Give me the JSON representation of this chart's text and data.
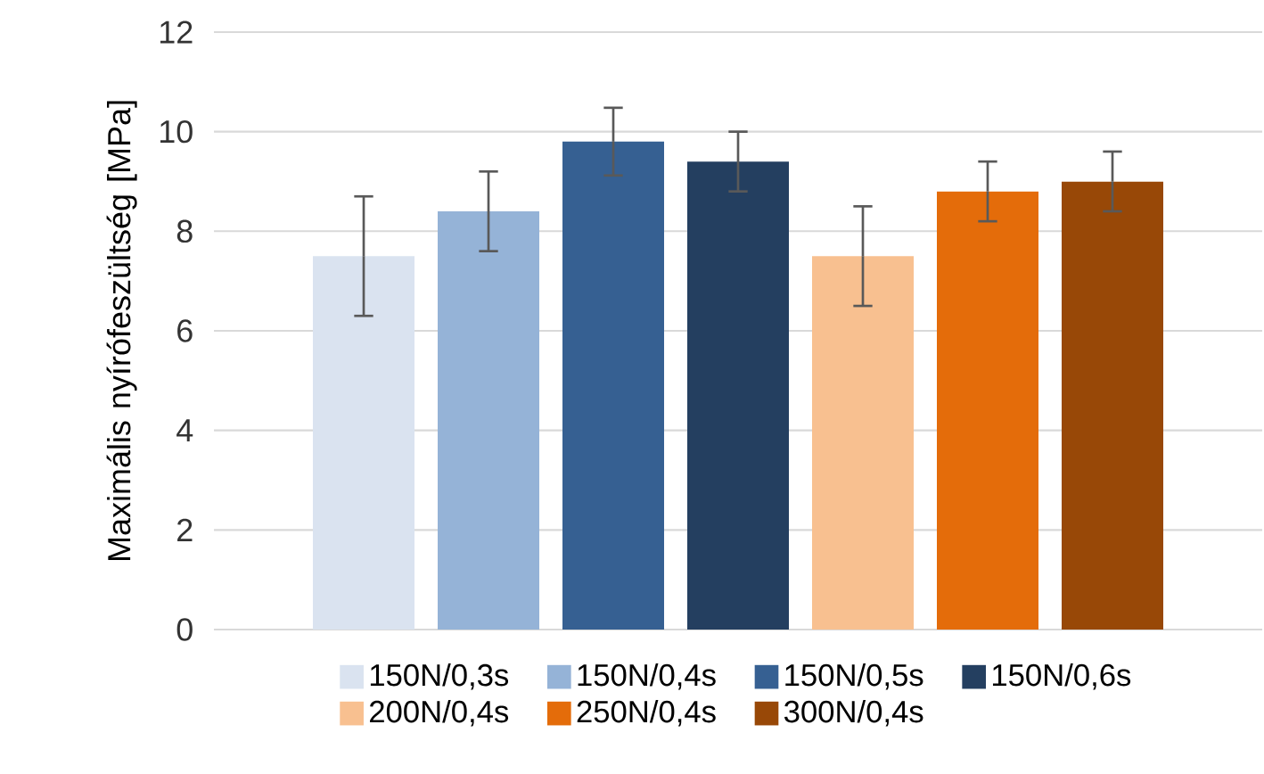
{
  "chart_data": {
    "type": "bar",
    "ylabel": "Maximális nyírófeszültség [MPa]",
    "categories": [
      null
    ],
    "series": [
      {
        "name": "150N/0,3s",
        "color": "#dae3f0",
        "values": [
          7.5
        ],
        "errors": [
          1.2
        ]
      },
      {
        "name": "150N/0,4s",
        "color": "#95b3d7",
        "values": [
          8.4
        ],
        "errors": [
          0.8
        ]
      },
      {
        "name": "150N/0,5s",
        "color": "#366092",
        "values": [
          9.8
        ],
        "errors": [
          0.68
        ]
      },
      {
        "name": "150N/0,6s",
        "color": "#243f60",
        "values": [
          9.4
        ],
        "errors": [
          0.6
        ]
      },
      {
        "name": "200N/0,4s",
        "color": "#f8c090",
        "values": [
          7.5
        ],
        "errors": [
          1.0
        ]
      },
      {
        "name": "250N/0,4s",
        "color": "#e46c0a",
        "values": [
          8.8
        ],
        "errors": [
          0.6
        ]
      },
      {
        "name": "300N/0,4s",
        "color": "#984807",
        "values": [
          9.0
        ],
        "errors": [
          0.6
        ]
      }
    ],
    "ylim": [
      0,
      12
    ],
    "yticks": [
      0,
      2,
      4,
      6,
      8,
      10,
      12
    ],
    "grid": "y",
    "legend": "bottom"
  }
}
